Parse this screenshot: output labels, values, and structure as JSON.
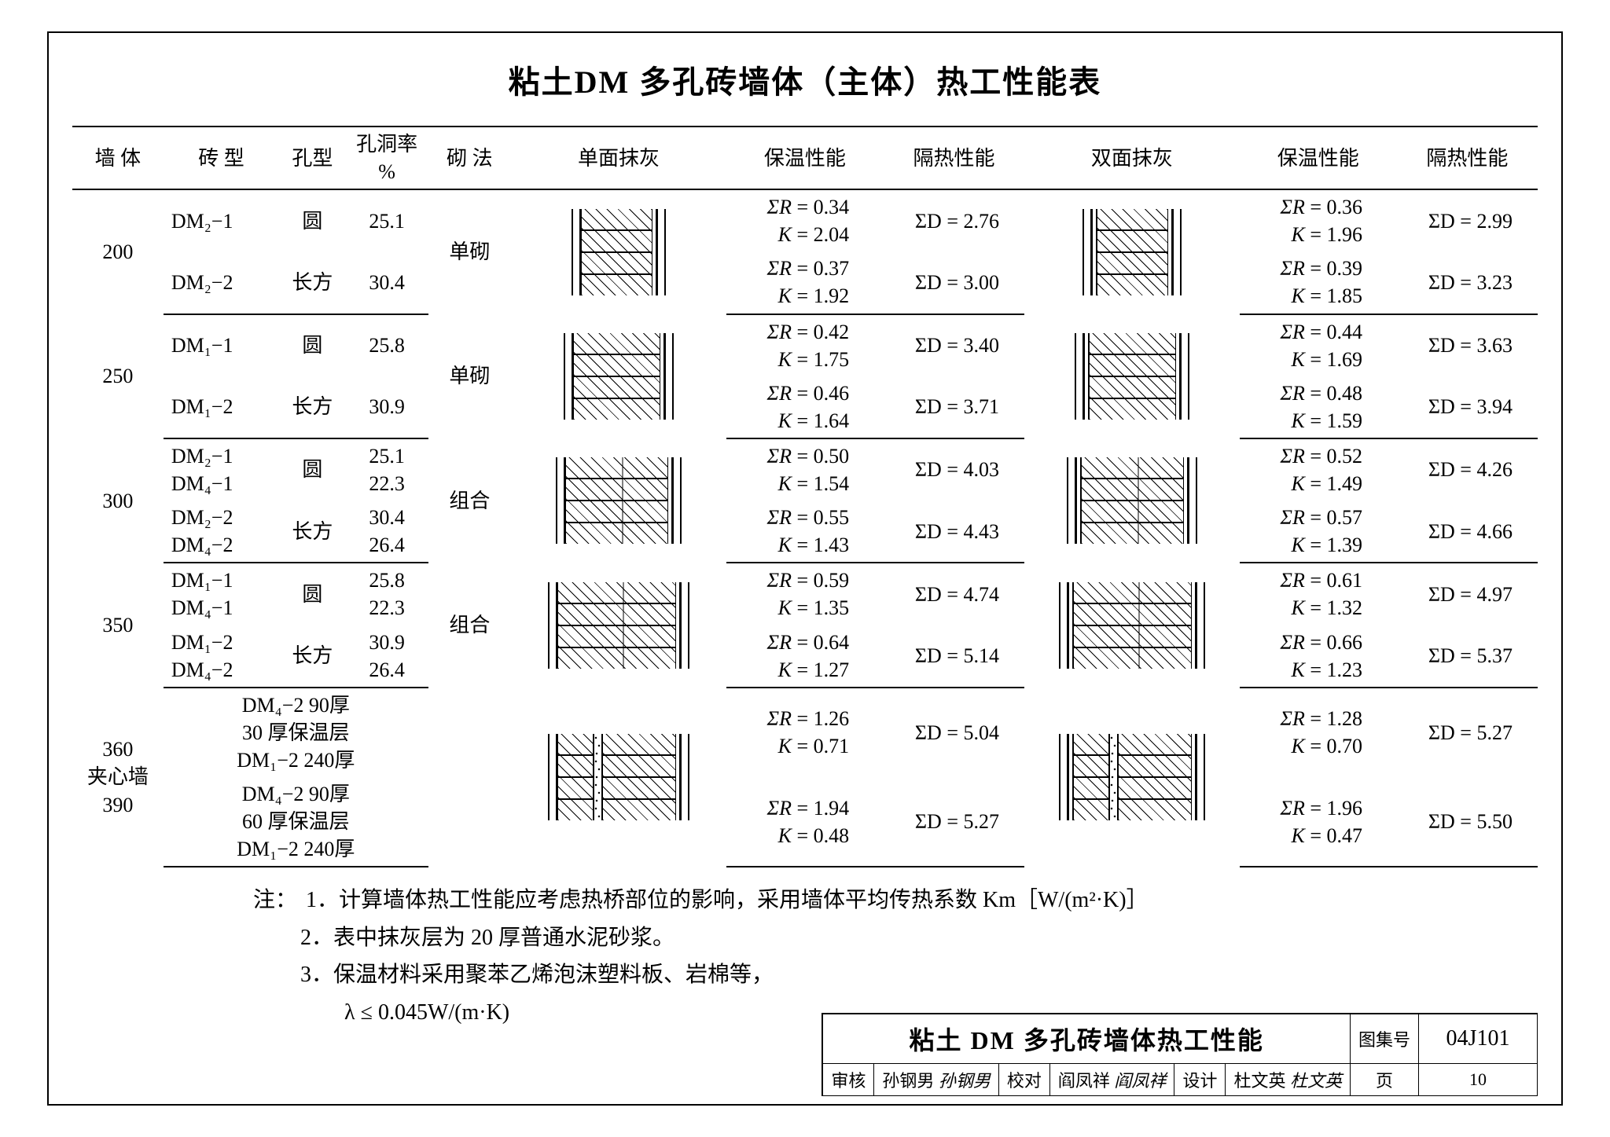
{
  "title": "粘土DM 多孔砖墙体（主体）热工性能表",
  "headers": {
    "wall": "墙 体",
    "brick": "砖 型",
    "hole": "孔型",
    "rate": "孔洞率\n%",
    "method": "砌 法",
    "single": "单面抹灰",
    "perf1": "保温性能",
    "iso1": "隔热性能",
    "double": "双面抹灰",
    "perf2": "保温性能",
    "iso2": "隔热性能"
  },
  "groups": [
    {
      "wall": "200",
      "method": "单砌",
      "diag": {
        "type": "single",
        "core_w": 90
      },
      "rows": [
        {
          "brick": "DM₂−1",
          "hole": "圆",
          "rate": "25.1",
          "s": {
            "SR": "0.34",
            "K": "2.04",
            "SD": "2.76"
          },
          "d": {
            "SR": "0.36",
            "K": "1.96",
            "SD": "2.99"
          }
        },
        {
          "brick": "DM₂−2",
          "hole": "长方",
          "rate": "30.4",
          "s": {
            "SR": "0.37",
            "K": "1.92",
            "SD": "3.00"
          },
          "d": {
            "SR": "0.39",
            "K": "1.85",
            "SD": "3.23"
          }
        }
      ]
    },
    {
      "wall": "250",
      "method": "单砌",
      "diag": {
        "type": "single",
        "core_w": 110
      },
      "rows": [
        {
          "brick": "DM₁−1",
          "hole": "圆",
          "rate": "25.8",
          "s": {
            "SR": "0.42",
            "K": "1.75",
            "SD": "3.40"
          },
          "d": {
            "SR": "0.44",
            "K": "1.69",
            "SD": "3.63"
          }
        },
        {
          "brick": "DM₁−2",
          "hole": "长方",
          "rate": "30.9",
          "s": {
            "SR": "0.46",
            "K": "1.64",
            "SD": "3.71"
          },
          "d": {
            "SR": "0.48",
            "K": "1.59",
            "SD": "3.94"
          }
        }
      ]
    },
    {
      "wall": "300",
      "method": "组合",
      "diag": {
        "type": "combo",
        "core_w": 130
      },
      "rows": [
        {
          "brick": "DM₂−1\nDM₄−1",
          "hole": "圆",
          "rate": "25.1\n22.3",
          "s": {
            "SR": "0.50",
            "K": "1.54",
            "SD": "4.03"
          },
          "d": {
            "SR": "0.52",
            "K": "1.49",
            "SD": "4.26"
          }
        },
        {
          "brick": "DM₂−2\nDM₄−2",
          "hole": "长方",
          "rate": "30.4\n26.4",
          "s": {
            "SR": "0.55",
            "K": "1.43",
            "SD": "4.43"
          },
          "d": {
            "SR": "0.57",
            "K": "1.39",
            "SD": "4.66"
          }
        }
      ]
    },
    {
      "wall": "350",
      "method": "组合",
      "diag": {
        "type": "combo",
        "core_w": 150
      },
      "rows": [
        {
          "brick": "DM₁−1\nDM₄−1",
          "hole": "圆",
          "rate": "25.8\n22.3",
          "s": {
            "SR": "0.59",
            "K": "1.35",
            "SD": "4.74"
          },
          "d": {
            "SR": "0.61",
            "K": "1.32",
            "SD": "4.97"
          }
        },
        {
          "brick": "DM₁−2\nDM₄−2",
          "hole": "长方",
          "rate": "30.9\n26.4",
          "s": {
            "SR": "0.64",
            "K": "1.27",
            "SD": "5.14"
          },
          "d": {
            "SR": "0.66",
            "K": "1.23",
            "SD": "5.37"
          }
        }
      ]
    },
    {
      "wall": "360\n夹心墙\n390",
      "method": "",
      "diag": {
        "type": "cavity",
        "core_w": 150
      },
      "bricks_span": true,
      "rows": [
        {
          "brick": "DM₄−2  90厚\n30 厚保温层\nDM₁−2 240厚",
          "hole": "",
          "rate": "",
          "s": {
            "SR": "1.26",
            "K": "0.71",
            "SD": "5.04"
          },
          "d": {
            "SR": "1.28",
            "K": "0.70",
            "SD": "5.27"
          }
        },
        {
          "brick": "DM₄−2  90厚\n60 厚保温层\nDM₁−2 240厚",
          "hole": "",
          "rate": "",
          "s": {
            "SR": "1.94",
            "K": "0.48",
            "SD": "5.27"
          },
          "d": {
            "SR": "1.96",
            "K": "0.47",
            "SD": "5.50"
          }
        }
      ]
    }
  ],
  "notes": {
    "label": "注：",
    "items": [
      "1．计算墙体热工性能应考虑热桥部位的影响，采用墙体平均传热系数 Km［W/(m²·K)］",
      "2．表中抹灰层为 20 厚普通水泥砂浆。",
      "3．保温材料采用聚苯乙烯泡沫塑料板、岩棉等，",
      "　　λ ≤ 0.045W/(m·K)"
    ]
  },
  "titleblock": {
    "caption": "粘土 DM 多孔砖墙体热工性能",
    "atlas_label": "图集号",
    "atlas": "04J101",
    "page_label": "页",
    "page": "10",
    "approvals": [
      {
        "role": "审核",
        "name": "孙钢男",
        "sig": "孙钢男"
      },
      {
        "role": "校对",
        "name": "阎凤祥",
        "sig": "阎凤祥"
      },
      {
        "role": "设计",
        "name": "杜文英",
        "sig": "杜文英"
      }
    ]
  }
}
